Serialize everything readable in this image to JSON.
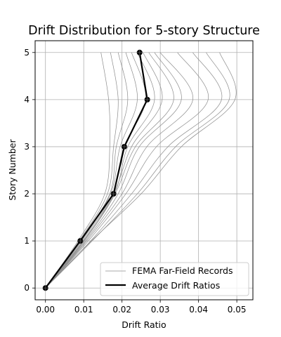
{
  "chart_data": {
    "type": "line",
    "title": "Drift Distribution for 5-story Structure",
    "xlabel": "Drift Ratio",
    "ylabel": "Story Number",
    "xlim": [
      -0.0027,
      0.0542
    ],
    "ylim": [
      -0.25,
      5.25
    ],
    "xticks": [
      0.0,
      0.01,
      0.02,
      0.03,
      0.04,
      0.05
    ],
    "xtick_labels": [
      "0.00",
      "0.01",
      "0.02",
      "0.03",
      "0.04",
      "0.05"
    ],
    "yticks": [
      0,
      1,
      2,
      3,
      4,
      5
    ],
    "ytick_labels": [
      "0",
      "1",
      "2",
      "3",
      "4",
      "5"
    ],
    "grid": true,
    "legend": {
      "position": "lower-right",
      "entries": [
        "FEMA Far-Field Records",
        "Average Drift Ratios"
      ]
    },
    "colors": {
      "records": "#8c8c8c",
      "average": "#000000",
      "grid": "#b0b0b0"
    },
    "y": [
      0,
      1,
      2,
      3,
      4,
      5
    ],
    "records": [
      {
        "x": [
          0,
          0.0085,
          0.0155,
          0.0168,
          0.0165,
          0.0145
        ]
      },
      {
        "x": [
          0,
          0.0088,
          0.0162,
          0.0178,
          0.019,
          0.017
        ]
      },
      {
        "x": [
          0,
          0.009,
          0.0168,
          0.0185,
          0.0215,
          0.019
        ]
      },
      {
        "x": [
          0,
          0.0092,
          0.017,
          0.0195,
          0.024,
          0.021
        ]
      },
      {
        "x": [
          0,
          0.0095,
          0.0175,
          0.0205,
          0.0262,
          0.0225
        ]
      },
      {
        "x": [
          0,
          0.0098,
          0.018,
          0.0215,
          0.0285,
          0.024
        ]
      },
      {
        "x": [
          0,
          0.01,
          0.0178,
          0.0225,
          0.0305,
          0.0255
        ]
      },
      {
        "x": [
          0,
          0.0102,
          0.0182,
          0.0235,
          0.0335,
          0.027
        ]
      },
      {
        "x": [
          0,
          0.0105,
          0.019,
          0.0245,
          0.0355,
          0.0285
        ]
      },
      {
        "x": [
          0,
          0.0108,
          0.02,
          0.0265,
          0.0385,
          0.03
        ]
      },
      {
        "x": [
          0,
          0.0112,
          0.021,
          0.029,
          0.0425,
          0.0345
        ]
      },
      {
        "x": [
          0,
          0.0118,
          0.0225,
          0.032,
          0.046,
          0.0385
        ]
      },
      {
        "x": [
          0,
          0.0122,
          0.024,
          0.034,
          0.048,
          0.042
        ]
      },
      {
        "x": [
          0,
          0.012,
          0.025,
          0.0355,
          0.0495,
          0.0455
        ]
      }
    ],
    "average": {
      "x": [
        0,
        0.0091,
        0.0178,
        0.0206,
        0.0266,
        0.0246
      ]
    }
  }
}
